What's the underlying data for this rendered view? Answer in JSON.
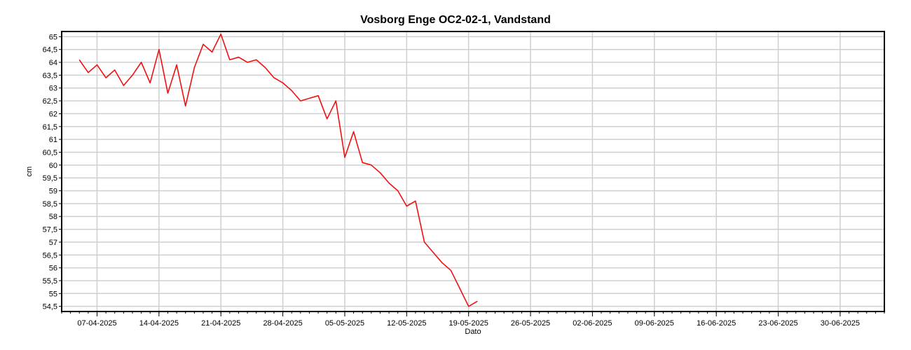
{
  "chart_data": {
    "type": "line",
    "title": "Vosborg Enge OC2-02-1, Vandstand",
    "xlabel": "Dato",
    "ylabel": "cm",
    "ylim": [
      54.3,
      65.2
    ],
    "xlim": [
      "2025-04-03",
      "2025-07-05"
    ],
    "y_ticks": [
      "54,5",
      "55",
      "55,5",
      "56",
      "56,5",
      "57",
      "57,5",
      "58",
      "58,5",
      "59",
      "59,5",
      "60",
      "60,5",
      "61",
      "61,5",
      "62",
      "62,5",
      "63",
      "63,5",
      "64",
      "64,5",
      "65"
    ],
    "x_ticks": [
      "07-04-2025",
      "14-04-2025",
      "21-04-2025",
      "28-04-2025",
      "05-05-2025",
      "12-05-2025",
      "19-05-2025",
      "26-05-2025",
      "02-06-2025",
      "09-06-2025",
      "16-06-2025",
      "23-06-2025",
      "30-06-2025"
    ],
    "grid": true,
    "series": [
      {
        "color": "#ee1111",
        "x": [
          "2025-04-05",
          "2025-04-06",
          "2025-04-07",
          "2025-04-08",
          "2025-04-09",
          "2025-04-10",
          "2025-04-11",
          "2025-04-12",
          "2025-04-13",
          "2025-04-14",
          "2025-04-15",
          "2025-04-16",
          "2025-04-17",
          "2025-04-18",
          "2025-04-19",
          "2025-04-20",
          "2025-04-21",
          "2025-04-22",
          "2025-04-23",
          "2025-04-24",
          "2025-04-25",
          "2025-04-26",
          "2025-04-27",
          "2025-04-28",
          "2025-04-29",
          "2025-04-30",
          "2025-05-01",
          "2025-05-02",
          "2025-05-03",
          "2025-05-04",
          "2025-05-05",
          "2025-05-06",
          "2025-05-07",
          "2025-05-08",
          "2025-05-09",
          "2025-05-10",
          "2025-05-11",
          "2025-05-12",
          "2025-05-13",
          "2025-05-14",
          "2025-05-15",
          "2025-05-16",
          "2025-05-17",
          "2025-05-18",
          "2025-05-19",
          "2025-05-20"
        ],
        "y": [
          64.1,
          63.6,
          63.9,
          63.4,
          63.7,
          63.1,
          63.5,
          64.0,
          63.2,
          64.5,
          62.8,
          63.9,
          62.3,
          63.8,
          64.7,
          64.4,
          65.1,
          64.1,
          64.2,
          64.0,
          64.1,
          63.8,
          63.4,
          63.2,
          62.9,
          62.5,
          62.6,
          62.7,
          61.8,
          62.5,
          60.3,
          61.3,
          60.1,
          60.0,
          59.7,
          59.3,
          59.0,
          58.4,
          58.6,
          57.0,
          56.6,
          56.2,
          55.9,
          55.2,
          54.5,
          54.7
        ]
      }
    ]
  }
}
